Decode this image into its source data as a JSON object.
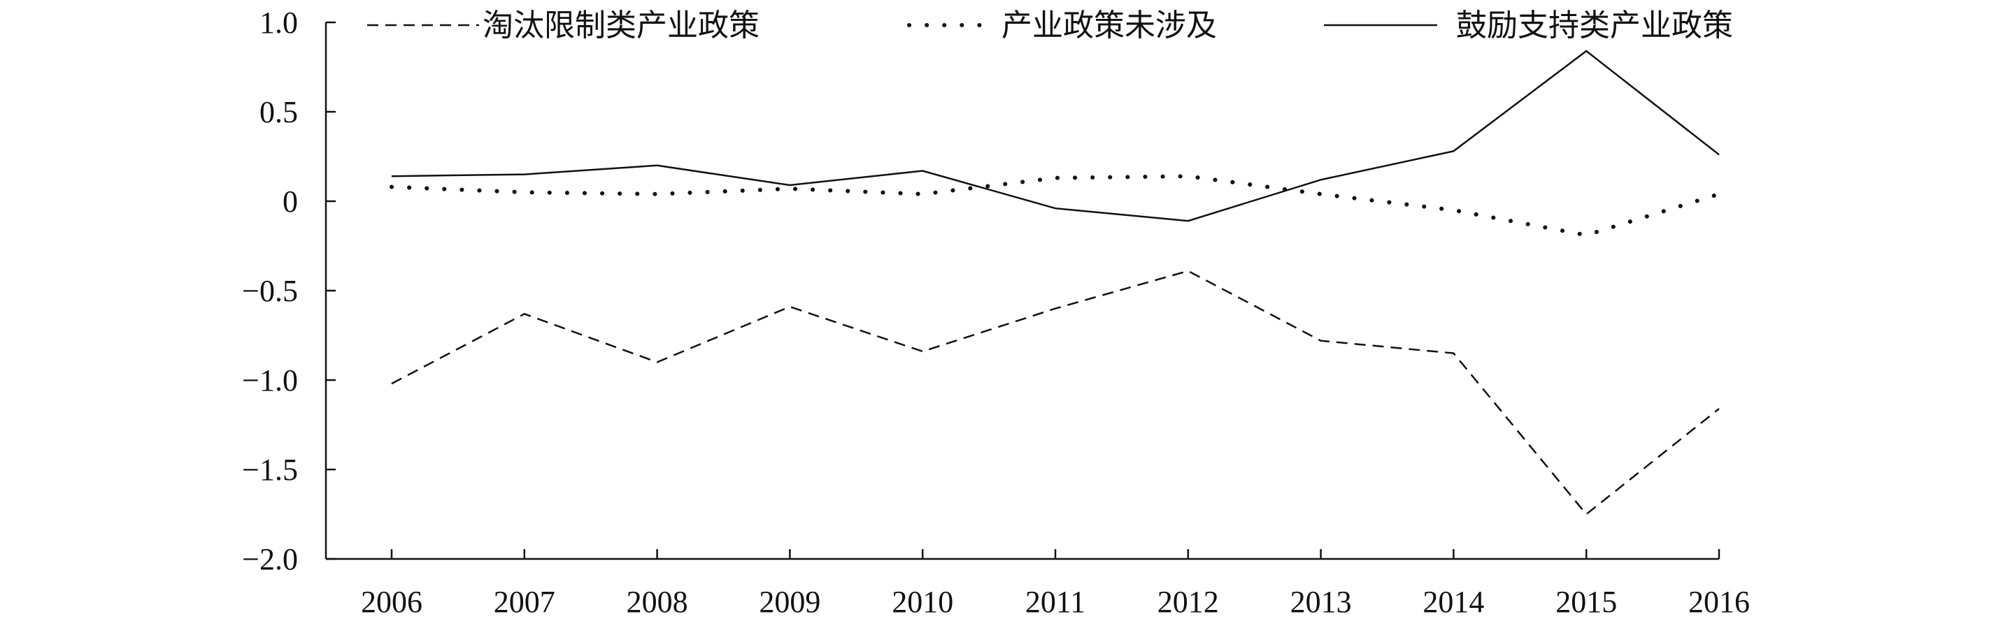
{
  "chart_data": {
    "type": "line",
    "x": [
      "2006",
      "2007",
      "2008",
      "2009",
      "2010",
      "2011",
      "2012",
      "2013",
      "2014",
      "2015",
      "2016"
    ],
    "ylim": [
      -2.0,
      1.0
    ],
    "yticks": [
      "1.0",
      "0.5",
      "0",
      "−0.5",
      "−1.0",
      "−1.5",
      "−2.0"
    ],
    "ytick_values": [
      1.0,
      0.5,
      0,
      -0.5,
      -1.0,
      -1.5,
      -2.0
    ],
    "grid": false,
    "legend_position": "top",
    "series": [
      {
        "name": "淘汰限制类产业政策",
        "style": "dashed",
        "values": [
          -1.02,
          -0.63,
          -0.9,
          -0.59,
          -0.84,
          -0.6,
          -0.39,
          -0.78,
          -0.85,
          -1.75,
          -1.16
        ]
      },
      {
        "name": "产业政策未涉及",
        "style": "dotted",
        "values": [
          0.08,
          0.05,
          0.04,
          0.07,
          0.04,
          0.13,
          0.14,
          0.04,
          -0.05,
          -0.19,
          0.04
        ]
      },
      {
        "name": "鼓励支持类产业政策",
        "style": "solid",
        "values": [
          0.14,
          0.15,
          0.2,
          0.09,
          0.17,
          -0.04,
          -0.11,
          0.12,
          0.28,
          0.84,
          0.26
        ]
      }
    ]
  }
}
